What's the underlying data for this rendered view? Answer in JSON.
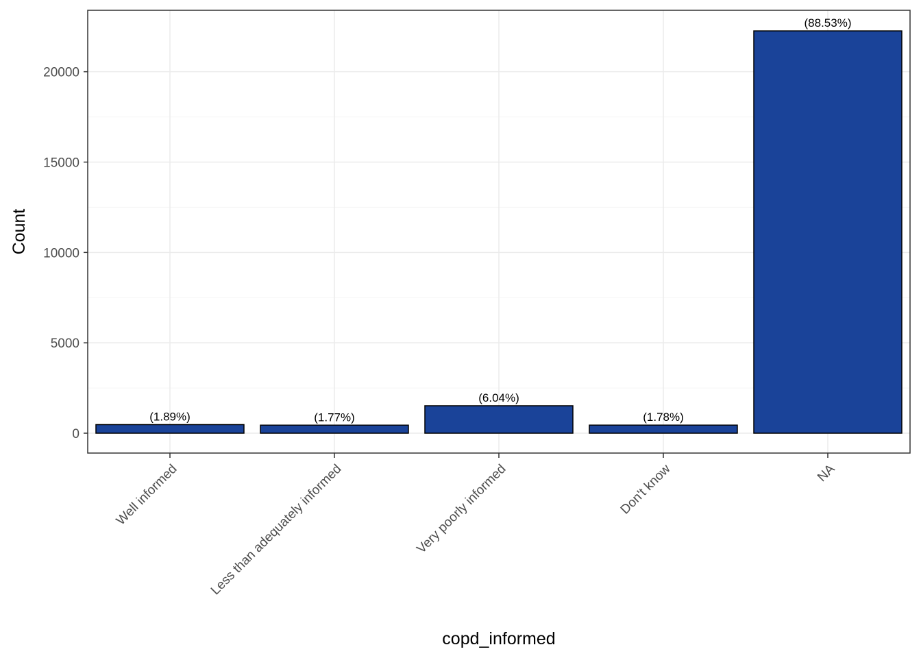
{
  "chart_data": {
    "type": "bar",
    "title": "",
    "xlabel": "copd_informed",
    "ylabel": "Count",
    "categories": [
      "Well informed",
      "Less than adequately informed",
      "Very poorly informed",
      "Don't know",
      "NA"
    ],
    "values": [
      475,
      445,
      1518,
      447,
      22259
    ],
    "labels": [
      "(1.89%)",
      "(1.77%)",
      "(6.04%)",
      "(1.78%)",
      "(88.53%)"
    ],
    "yticks": [
      0,
      5000,
      10000,
      15000,
      20000
    ],
    "ytick_labels": [
      "0",
      "5000",
      "10000",
      "15000",
      "20000"
    ],
    "ylim": [
      -1100,
      23400
    ],
    "grid": true,
    "legend": "none",
    "colors": {
      "bar_fill": "#1A4399",
      "bar_stroke": "#000000",
      "grid_major": "#EBEBEB",
      "grid_minor": "#F5F5F5",
      "panel_border": "#333333"
    }
  }
}
